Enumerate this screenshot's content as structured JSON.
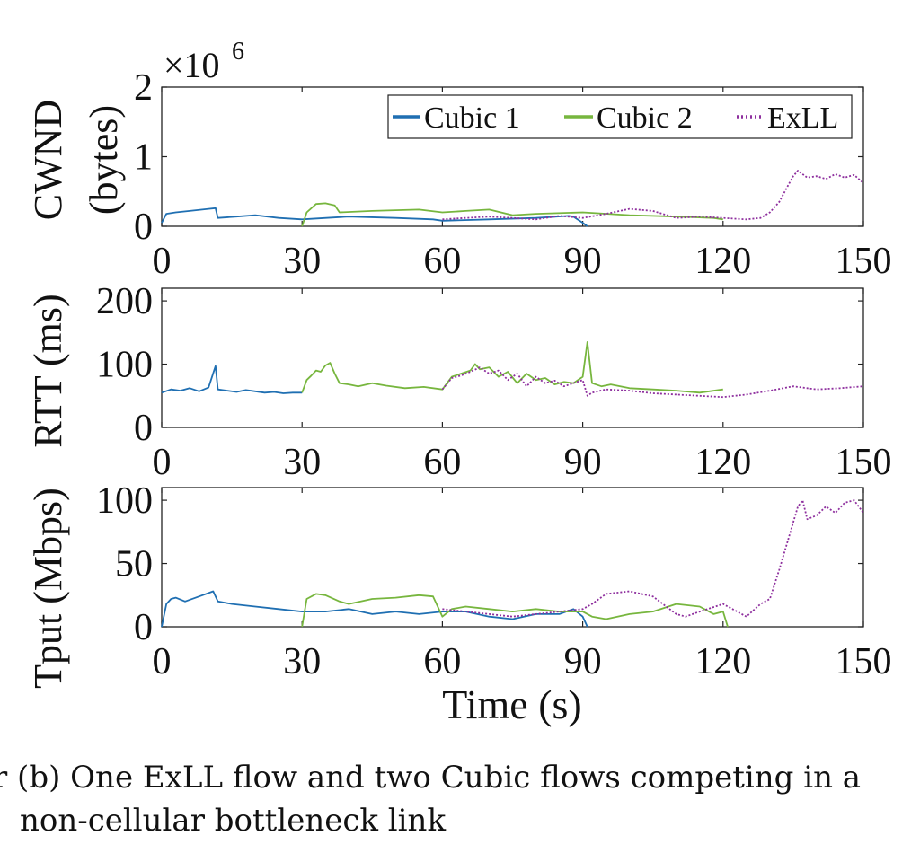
{
  "figure": {
    "caption_prefix": "r (b)",
    "caption_line1": "One ExLL flow and two Cubic flows competing in a",
    "caption_line2": "non-cellular bottleneck link",
    "x_axis_label": "Time (s)"
  },
  "colors": {
    "cubic1": "#1f6fb2",
    "cubic2": "#77b63e",
    "exll": "#8e2f9e"
  },
  "chart_data": [
    {
      "type": "line",
      "panel": "cwnd",
      "ylabel_line1": "CWND",
      "ylabel_line2": "(bytes)",
      "exponent_label": "×10",
      "exponent_power": "6",
      "xlim": [
        0,
        150
      ],
      "ylim": [
        0,
        2
      ],
      "xticks": [
        0,
        30,
        60,
        90,
        120,
        150
      ],
      "yticks": [
        0,
        1,
        2
      ],
      "legend": [
        "Cubic 1",
        "Cubic 2",
        "ExLL"
      ],
      "legend_position": "top-right",
      "series": [
        {
          "name": "Cubic 1",
          "x": [
            0,
            1,
            3,
            6,
            10,
            11.5,
            12,
            16,
            20,
            25,
            30,
            40,
            50,
            58,
            60,
            70,
            80,
            87,
            88,
            90,
            91
          ],
          "y": [
            0.05,
            0.18,
            0.2,
            0.22,
            0.25,
            0.26,
            0.12,
            0.14,
            0.16,
            0.12,
            0.1,
            0.14,
            0.12,
            0.1,
            0.08,
            0.1,
            0.12,
            0.15,
            0.14,
            0.05,
            0.0
          ]
        },
        {
          "name": "Cubic 2",
          "x": [
            30,
            31,
            33,
            35,
            37,
            38,
            45,
            55,
            60,
            65,
            70,
            75,
            80,
            90,
            100,
            110,
            118,
            120
          ],
          "y": [
            0.0,
            0.2,
            0.32,
            0.33,
            0.3,
            0.2,
            0.22,
            0.24,
            0.2,
            0.22,
            0.24,
            0.16,
            0.18,
            0.2,
            0.16,
            0.14,
            0.12,
            0.1
          ]
        },
        {
          "name": "ExLL",
          "x": [
            60,
            65,
            70,
            75,
            80,
            85,
            90,
            95,
            100,
            105,
            110,
            115,
            120,
            125,
            128,
            130,
            132,
            134,
            135,
            136,
            138,
            140,
            142,
            144,
            146,
            148,
            150
          ],
          "y": [
            0.1,
            0.12,
            0.14,
            0.12,
            0.1,
            0.15,
            0.12,
            0.18,
            0.25,
            0.22,
            0.12,
            0.14,
            0.12,
            0.1,
            0.12,
            0.2,
            0.35,
            0.6,
            0.72,
            0.8,
            0.7,
            0.72,
            0.68,
            0.75,
            0.7,
            0.74,
            0.62
          ]
        }
      ]
    },
    {
      "type": "line",
      "panel": "rtt",
      "ylabel": "RTT (ms)",
      "xlim": [
        0,
        150
      ],
      "ylim": [
        0,
        220
      ],
      "xticks": [
        0,
        30,
        60,
        90,
        120,
        150
      ],
      "yticks": [
        0,
        100,
        200
      ],
      "series": [
        {
          "name": "Cubic 1",
          "x": [
            0,
            2,
            4,
            6,
            8,
            10,
            11.5,
            12,
            14,
            16,
            18,
            20,
            22,
            24,
            26,
            28,
            30
          ],
          "y": [
            55,
            60,
            58,
            62,
            57,
            63,
            97,
            60,
            58,
            56,
            59,
            57,
            55,
            56,
            54,
            55,
            55
          ]
        },
        {
          "name": "Cubic 2",
          "x": [
            30,
            31,
            32,
            33,
            34,
            35,
            36,
            37,
            38,
            40,
            42,
            45,
            48,
            52,
            56,
            60,
            62,
            64,
            66,
            67,
            68,
            70,
            72,
            74,
            76,
            78,
            80,
            82,
            84,
            86,
            88,
            90,
            91,
            92,
            94,
            96,
            100,
            105,
            110,
            115,
            120
          ],
          "y": [
            55,
            75,
            82,
            90,
            88,
            98,
            102,
            85,
            70,
            68,
            65,
            70,
            66,
            62,
            64,
            60,
            80,
            85,
            90,
            100,
            92,
            95,
            80,
            88,
            70,
            85,
            75,
            78,
            68,
            72,
            70,
            80,
            135,
            70,
            65,
            68,
            62,
            60,
            58,
            55,
            60
          ]
        },
        {
          "name": "ExLL",
          "x": [
            60,
            62,
            64,
            66,
            68,
            70,
            72,
            74,
            76,
            78,
            80,
            82,
            84,
            86,
            88,
            90,
            91,
            92,
            95,
            100,
            105,
            110,
            115,
            120,
            125,
            130,
            135,
            140,
            145,
            150
          ],
          "y": [
            60,
            78,
            82,
            88,
            95,
            85,
            90,
            75,
            85,
            65,
            80,
            70,
            74,
            65,
            70,
            75,
            50,
            55,
            60,
            58,
            54,
            52,
            50,
            48,
            52,
            58,
            65,
            60,
            62,
            65
          ]
        }
      ]
    },
    {
      "type": "line",
      "panel": "tput",
      "ylabel": "Tput (Mbps)",
      "xlim": [
        0,
        150
      ],
      "ylim": [
        0,
        110
      ],
      "xticks": [
        0,
        30,
        60,
        90,
        120,
        150
      ],
      "yticks": [
        0,
        50,
        100
      ],
      "series": [
        {
          "name": "Cubic 1",
          "x": [
            0,
            1,
            2,
            3,
            5,
            8,
            11,
            12,
            15,
            20,
            25,
            30,
            35,
            40,
            45,
            50,
            55,
            60,
            65,
            70,
            75,
            80,
            85,
            88,
            90,
            91
          ],
          "y": [
            0,
            18,
            22,
            23,
            20,
            24,
            28,
            20,
            18,
            16,
            14,
            12,
            12,
            14,
            10,
            12,
            10,
            12,
            12,
            8,
            6,
            10,
            10,
            14,
            8,
            0
          ]
        },
        {
          "name": "Cubic 2",
          "x": [
            30,
            31,
            33,
            35,
            38,
            40,
            45,
            50,
            55,
            58,
            60,
            62,
            65,
            70,
            75,
            80,
            85,
            90,
            92,
            95,
            100,
            105,
            110,
            115,
            118,
            120,
            121
          ],
          "y": [
            0,
            22,
            26,
            25,
            20,
            18,
            22,
            23,
            25,
            24,
            8,
            14,
            16,
            14,
            12,
            14,
            12,
            12,
            8,
            6,
            10,
            12,
            18,
            16,
            10,
            12,
            0
          ]
        },
        {
          "name": "ExLL",
          "x": [
            60,
            65,
            70,
            75,
            80,
            85,
            90,
            92,
            95,
            100,
            105,
            110,
            112,
            115,
            120,
            125,
            128,
            130,
            132,
            134,
            136,
            137,
            138,
            140,
            142,
            144,
            146,
            148,
            150
          ],
          "y": [
            14,
            12,
            10,
            8,
            10,
            12,
            14,
            18,
            26,
            28,
            24,
            10,
            8,
            12,
            18,
            8,
            18,
            22,
            45,
            70,
            95,
            100,
            85,
            88,
            95,
            90,
            98,
            100,
            90
          ]
        }
      ]
    }
  ]
}
